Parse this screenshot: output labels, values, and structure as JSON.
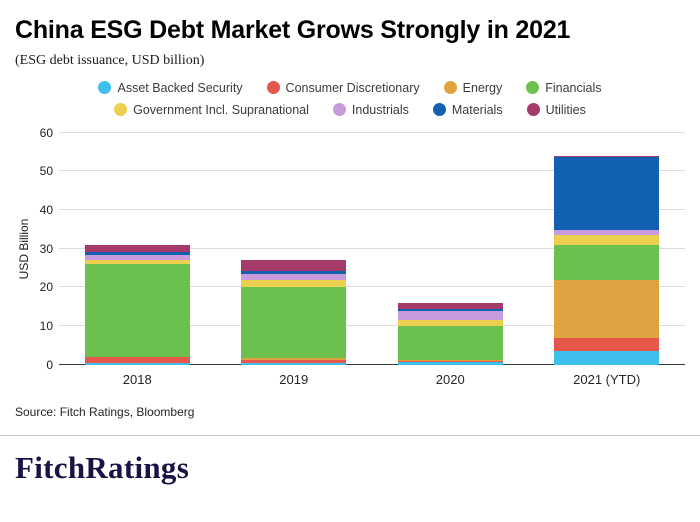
{
  "header": {
    "title": "China ESG Debt Market Grows Strongly in 2021",
    "subtitle": "(ESG debt issuance, USD billion)"
  },
  "chart_data": {
    "type": "bar",
    "stacked": true,
    "title": "China ESG Debt Market Grows Strongly in 2021",
    "subtitle": "(ESG debt issuance, USD billion)",
    "categories": [
      "2018",
      "2019",
      "2020",
      "2021 (YTD)"
    ],
    "series": [
      {
        "name": "Asset Backed Security",
        "color": "#3ec0ed",
        "values": [
          0.4,
          0.4,
          0.7,
          3.5
        ]
      },
      {
        "name": "Consumer Discretionary",
        "color": "#e4574a",
        "values": [
          1.5,
          0.8,
          0.4,
          3.5
        ]
      },
      {
        "name": "Energy",
        "color": "#dfa43f",
        "values": [
          0.2,
          0.5,
          0.2,
          15.0
        ]
      },
      {
        "name": "Financials",
        "color": "#6cc04d",
        "values": [
          23.9,
          18.3,
          8.7,
          9.0
        ]
      },
      {
        "name": "Government Incl. Supranational",
        "color": "#edcf4f",
        "values": [
          1.1,
          2.0,
          1.5,
          2.5
        ]
      },
      {
        "name": "Industrials",
        "color": "#c79bdc",
        "values": [
          1.4,
          1.5,
          2.5,
          1.3
        ]
      },
      {
        "name": "Materials",
        "color": "#1260b0",
        "values": [
          0.6,
          0.8,
          0.4,
          19.0
        ]
      },
      {
        "name": "Utilities",
        "color": "#a63a6b",
        "values": [
          1.9,
          2.7,
          1.6,
          0.2
        ]
      }
    ],
    "ylabel": "USD Billion",
    "xlabel": "",
    "ylim": [
      0,
      60
    ],
    "yticks": [
      0,
      10,
      20,
      30,
      40,
      50,
      60
    ],
    "grid": true,
    "legend_position": "top"
  },
  "footer": {
    "source": "Source: Fitch Ratings, Bloomberg",
    "logo": "FitchRatings"
  }
}
